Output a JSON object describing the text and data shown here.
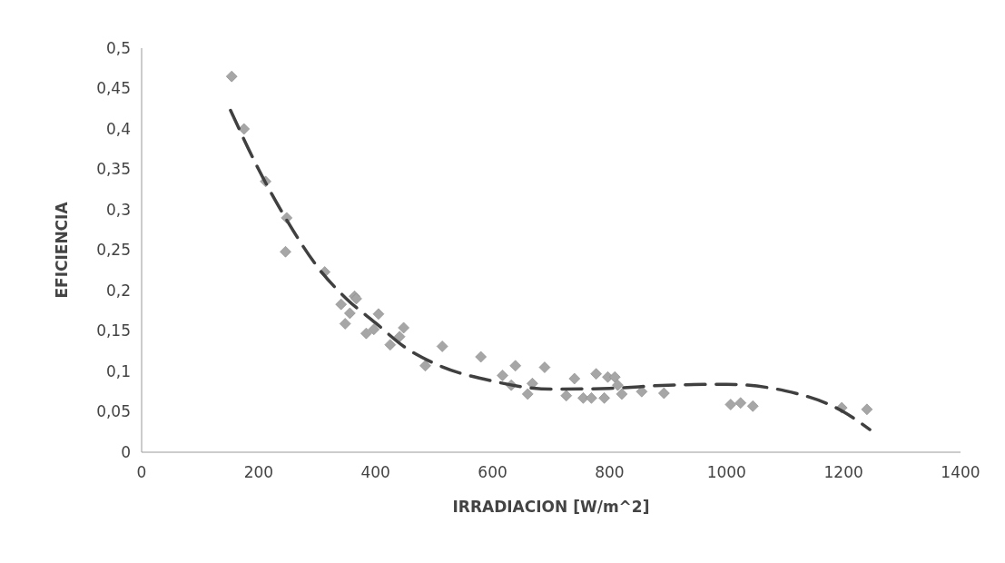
{
  "chart_data": {
    "type": "scatter",
    "xlabel": "IRRADIACION [W/m^2]",
    "ylabel": "EFICIENCIA",
    "xlim": [
      0,
      1400
    ],
    "xticks": [
      0,
      200,
      400,
      600,
      800,
      1000,
      1200,
      1400
    ],
    "ylim": [
      0,
      0.5
    ],
    "yticks": [
      0,
      {
        "value": 0.05,
        "label": "0,05"
      },
      {
        "value": 0.1,
        "label": "0,1"
      },
      {
        "value": 0.15,
        "label": "0,15"
      },
      {
        "value": 0.2,
        "label": "0,2"
      },
      {
        "value": 0.25,
        "label": "0,25"
      },
      {
        "value": 0.3,
        "label": "0,3"
      },
      {
        "value": 0.35,
        "label": "0,35"
      },
      {
        "value": 0.4,
        "label": "0,4"
      },
      {
        "value": 0.45,
        "label": "0,45"
      },
      {
        "value": 0.5,
        "label": "0,5"
      }
    ],
    "grid": false,
    "series": [
      {
        "marker": "diamond",
        "color": "#a6a6a6",
        "x": [
          154,
          175,
          212,
          248,
          246,
          313,
          341,
          364,
          367,
          356,
          348,
          405,
          384,
          397,
          448,
          441,
          425,
          514,
          485,
          580,
          639,
          617,
          632,
          689,
          668,
          660,
          740,
          726,
          755,
          769,
          791,
          777,
          797,
          809,
          821,
          814,
          855,
          893,
          1007,
          1024,
          1045,
          1197,
          1240
        ],
        "values": [
          0.465,
          0.4,
          0.335,
          0.29,
          0.248,
          0.223,
          0.183,
          0.193,
          0.19,
          0.172,
          0.159,
          0.171,
          0.147,
          0.152,
          0.154,
          0.143,
          0.133,
          0.131,
          0.107,
          0.118,
          0.107,
          0.095,
          0.083,
          0.105,
          0.085,
          0.072,
          0.091,
          0.07,
          0.067,
          0.067,
          0.067,
          0.097,
          0.093,
          0.093,
          0.072,
          0.083,
          0.075,
          0.073,
          0.059,
          0.061,
          0.057,
          0.055,
          0.053
        ]
      },
      {
        "type": "line",
        "marker": "none",
        "line_style": "dashed",
        "color": "#404040",
        "x": [
          152,
          200,
          250,
          300,
          350,
          400,
          450,
          500,
          600,
          700,
          800,
          900,
          1000,
          1100,
          1200,
          1245
        ],
        "values": [
          0.423,
          0.35,
          0.285,
          0.23,
          0.19,
          0.16,
          0.13,
          0.11,
          0.088,
          0.078,
          0.079,
          0.083,
          0.084,
          0.076,
          0.05,
          0.028
        ]
      }
    ]
  }
}
